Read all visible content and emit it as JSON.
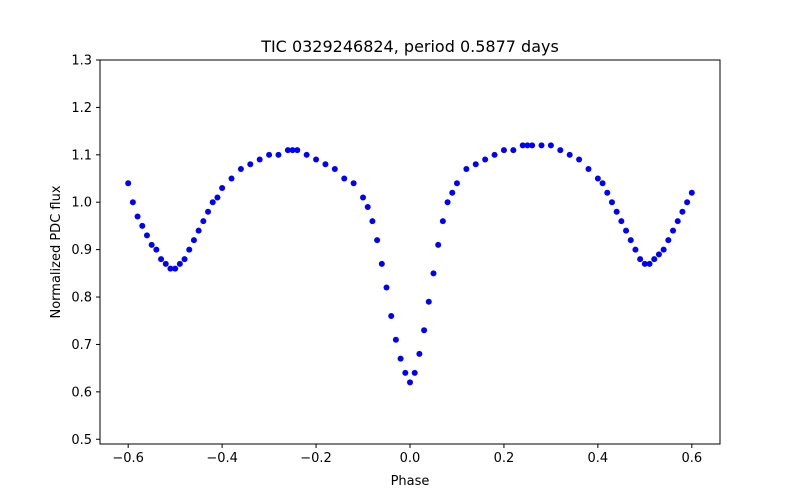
{
  "chart_data": {
    "type": "scatter",
    "title": "TIC 0329246824, period 0.5877 days",
    "xlabel": "Phase",
    "ylabel": "Normalized PDC flux",
    "xlim": [
      -0.66,
      0.66
    ],
    "ylim": [
      0.49,
      1.3
    ],
    "x_ticks": [
      -0.6,
      -0.4,
      -0.2,
      0.0,
      0.2,
      0.4,
      0.6
    ],
    "x_tick_labels": [
      "−0.6",
      "−0.4",
      "−0.2",
      "0.0",
      "0.2",
      "0.4",
      "0.6"
    ],
    "y_ticks": [
      0.5,
      0.6,
      0.7,
      0.8,
      0.9,
      1.0,
      1.1,
      1.2,
      1.3
    ],
    "y_tick_labels": [
      "0.5",
      "0.6",
      "0.7",
      "0.8",
      "0.9",
      "1.0",
      "1.1",
      "1.2",
      "1.3"
    ],
    "grid": false,
    "point_color": "#0000ff",
    "series": [
      {
        "x": [
          -0.6,
          -0.59,
          -0.58,
          -0.57,
          -0.56,
          -0.55,
          -0.54,
          -0.53,
          -0.52,
          -0.51,
          -0.5,
          -0.49,
          -0.48,
          -0.47,
          -0.46,
          -0.45,
          -0.44,
          -0.43,
          -0.42,
          -0.41,
          -0.4,
          -0.38,
          -0.36,
          -0.34,
          -0.32,
          -0.3,
          -0.28,
          -0.26,
          -0.25,
          -0.24,
          -0.22,
          -0.2,
          -0.18,
          -0.16,
          -0.14,
          -0.12,
          -0.1,
          -0.09,
          -0.08,
          -0.07,
          -0.06,
          -0.05,
          -0.04,
          -0.03,
          -0.02,
          -0.01,
          0.0,
          0.01,
          0.02,
          0.03,
          0.04,
          0.05,
          0.06,
          0.07,
          0.08,
          0.09,
          0.1,
          0.12,
          0.14,
          0.16,
          0.18,
          0.2,
          0.22,
          0.24,
          0.25,
          0.26,
          0.28,
          0.3,
          0.32,
          0.34,
          0.36,
          0.38,
          0.4,
          0.41,
          0.42,
          0.43,
          0.44,
          0.45,
          0.46,
          0.47,
          0.48,
          0.49,
          0.5,
          0.51,
          0.52,
          0.53,
          0.54,
          0.55,
          0.56,
          0.57,
          0.58,
          0.59,
          0.6
        ],
        "y": [
          1.04,
          1.0,
          0.97,
          0.95,
          0.93,
          0.91,
          0.9,
          0.88,
          0.87,
          0.86,
          0.86,
          0.87,
          0.88,
          0.9,
          0.92,
          0.94,
          0.96,
          0.98,
          1.0,
          1.01,
          1.03,
          1.05,
          1.07,
          1.08,
          1.09,
          1.1,
          1.1,
          1.11,
          1.11,
          1.11,
          1.1,
          1.09,
          1.08,
          1.07,
          1.05,
          1.04,
          1.01,
          0.99,
          0.96,
          0.92,
          0.87,
          0.82,
          0.76,
          0.71,
          0.67,
          0.64,
          0.62,
          0.64,
          0.68,
          0.73,
          0.79,
          0.85,
          0.91,
          0.96,
          1.0,
          1.02,
          1.04,
          1.07,
          1.08,
          1.09,
          1.1,
          1.11,
          1.11,
          1.12,
          1.12,
          1.12,
          1.12,
          1.12,
          1.11,
          1.1,
          1.09,
          1.07,
          1.05,
          1.04,
          1.02,
          1.0,
          0.98,
          0.96,
          0.94,
          0.92,
          0.9,
          0.88,
          0.87,
          0.87,
          0.88,
          0.89,
          0.9,
          0.92,
          0.94,
          0.96,
          0.98,
          1.0,
          1.02
        ]
      }
    ]
  }
}
